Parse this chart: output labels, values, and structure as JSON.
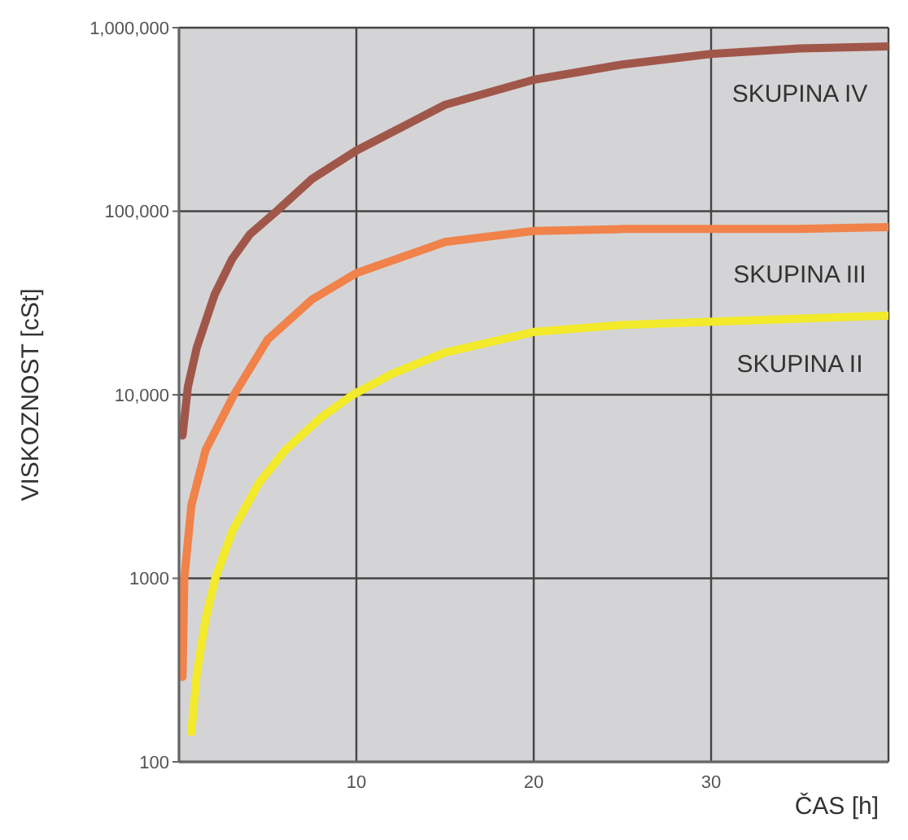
{
  "chart_data": {
    "type": "line",
    "xlabel": "ČAS [h]",
    "ylabel": "VISKOZNOST [cSt]",
    "log": "y",
    "grid": true,
    "legend": false,
    "marker": "none",
    "line_style": "solid",
    "xlim": [
      0,
      40
    ],
    "xticks": [
      10,
      20,
      30
    ],
    "ylim": [
      100,
      1000000
    ],
    "yticks": [
      100,
      1000,
      {
        "value": 10000,
        "label": "10,000"
      },
      {
        "value": 100000,
        "label": "100,000"
      },
      {
        "value": 1000000,
        "label": "1,000,000"
      }
    ],
    "series": [
      {
        "name": "SKUPINA IV",
        "color": "#a0574a",
        "x": [
          0.2,
          0.5,
          1,
          2,
          3,
          4,
          5.5,
          7.5,
          10,
          15,
          20,
          25,
          30,
          35,
          40
        ],
        "values": [
          6000,
          11000,
          18000,
          35000,
          55000,
          75000,
          100000,
          150000,
          214000,
          380000,
          520000,
          630000,
          720000,
          770000,
          790000
        ]
      },
      {
        "name": "SKUPINA III",
        "color": "#f0824a",
        "x": [
          0.2,
          0.3,
          0.7,
          1.5,
          3.1,
          5,
          7.5,
          10,
          15,
          20,
          25,
          30,
          35,
          40
        ],
        "values": [
          290,
          1000,
          2500,
          5000,
          10000,
          20000,
          33000,
          46000,
          68000,
          78000,
          80000,
          80000,
          80000,
          82000
        ]
      },
      {
        "name": "SKUPINA II",
        "color": "#f2ea2a",
        "x": [
          0.7,
          1,
          1.5,
          2.05,
          3,
          4.5,
          6,
          8,
          9.8,
          12,
          15,
          20,
          25,
          30,
          35,
          40
        ],
        "values": [
          145,
          300,
          600,
          1000,
          1800,
          3300,
          5000,
          7500,
          10000,
          13000,
          17000,
          22000,
          24000,
          25000,
          26000,
          27000
        ]
      }
    ]
  }
}
